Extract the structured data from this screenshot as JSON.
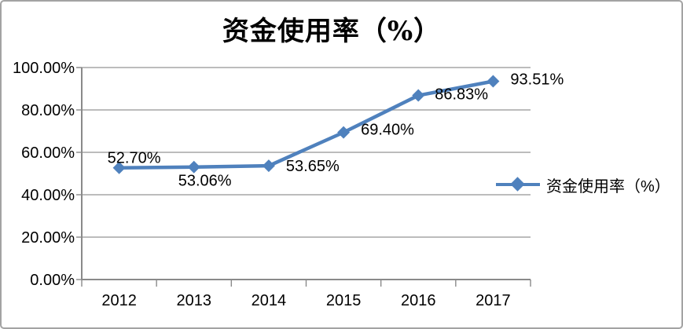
{
  "window": {
    "background": "#FFFFFF",
    "border_color": "#A3A3A3"
  },
  "chart_data": {
    "type": "line",
    "title": "资金使用率（%）",
    "categories": [
      "2012",
      "2013",
      "2014",
      "2015",
      "2016",
      "2017"
    ],
    "series": [
      {
        "name": "资金使用率（%）",
        "values": [
          52.7,
          53.06,
          53.65,
          69.4,
          86.83,
          93.51
        ],
        "point_labels": [
          "52.70%",
          "53.06%",
          "53.65%",
          "69.40%",
          "86.83%",
          "93.51%"
        ],
        "color": "#4F81BD",
        "marker": "diamond"
      }
    ],
    "xlabel": "",
    "ylabel": "",
    "ylim": [
      0,
      100
    ],
    "yticks": [
      {
        "value": 0,
        "label": "0.00%"
      },
      {
        "value": 20,
        "label": "20.00%"
      },
      {
        "value": 40,
        "label": "40.00%"
      },
      {
        "value": 60,
        "label": "60.00%"
      },
      {
        "value": 80,
        "label": "80.00%"
      },
      {
        "value": 100,
        "label": "100.00%"
      }
    ],
    "grid": true,
    "legend": {
      "position": "middle-right",
      "entries": [
        "资金使用率（%）"
      ]
    },
    "colors": {
      "series": "#4F81BD",
      "gridline": "#A6A6A6",
      "axis": "#8A8A8A",
      "text": "#000000"
    }
  }
}
